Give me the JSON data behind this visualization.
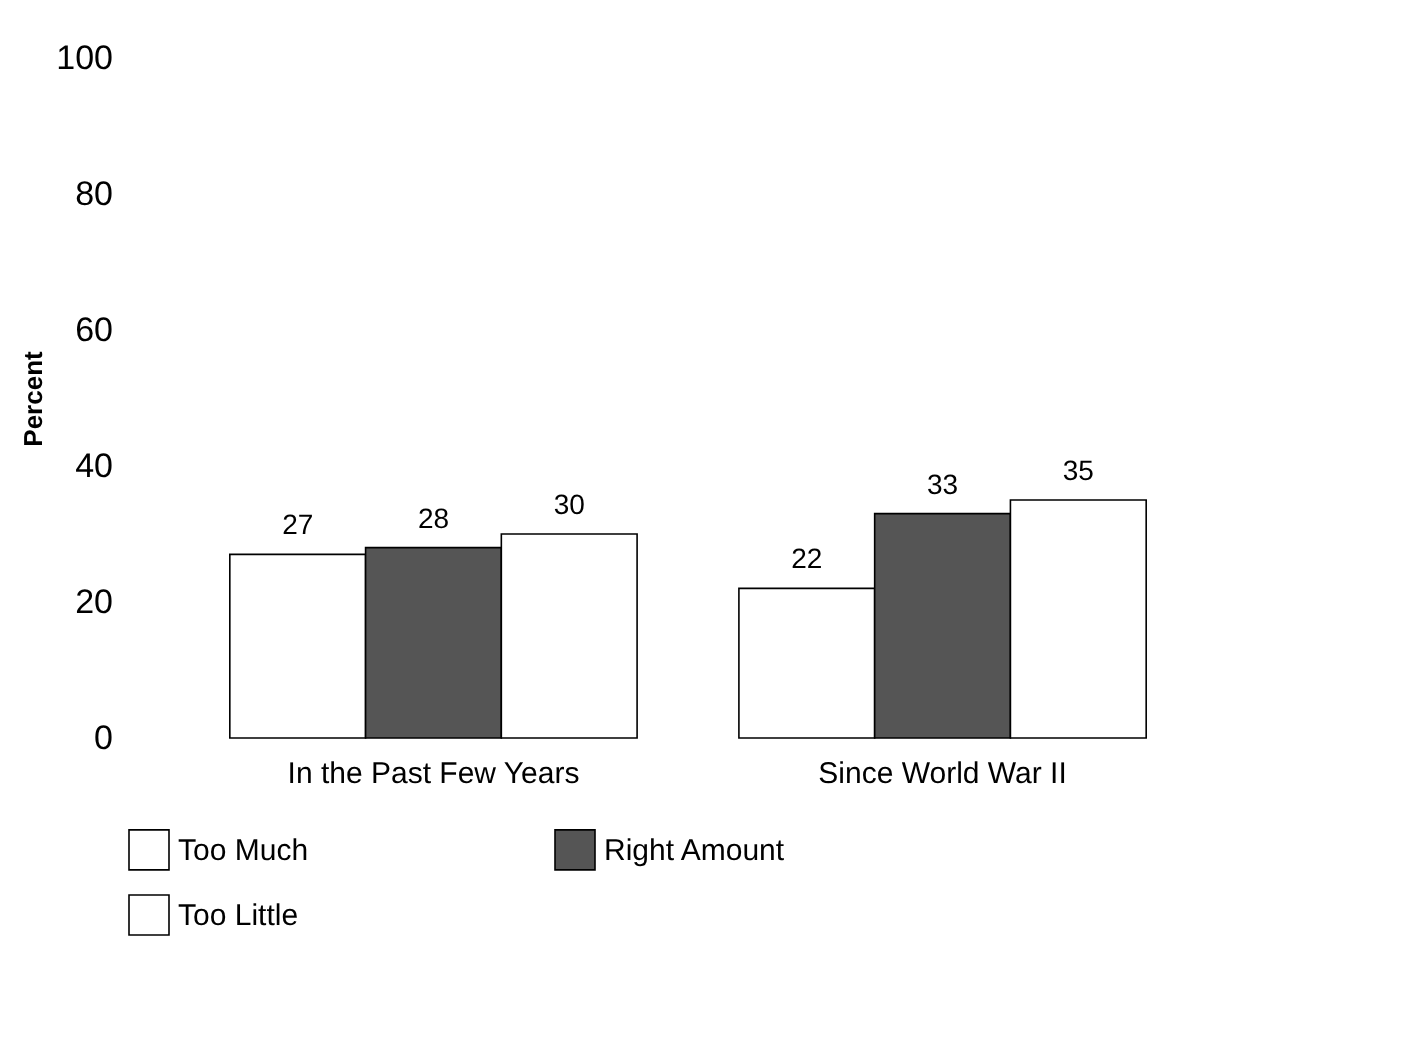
{
  "chart_data": {
    "type": "bar",
    "ylabel": "Percent",
    "categories": [
      "In the Past Few Years",
      "Since World War II"
    ],
    "series": [
      {
        "name": "Too Much",
        "color": "#ffffff",
        "values": [
          27,
          22
        ]
      },
      {
        "name": "Right Amount",
        "color": "#555555",
        "values": [
          28,
          33
        ]
      },
      {
        "name": "Too Little",
        "color": "#ffffff",
        "values": [
          30,
          35
        ]
      }
    ],
    "ylim": [
      0,
      100
    ],
    "yticks": [
      0,
      20,
      40,
      60,
      80,
      100
    ],
    "grid": false,
    "legend": "bottom",
    "data_labels": true
  }
}
